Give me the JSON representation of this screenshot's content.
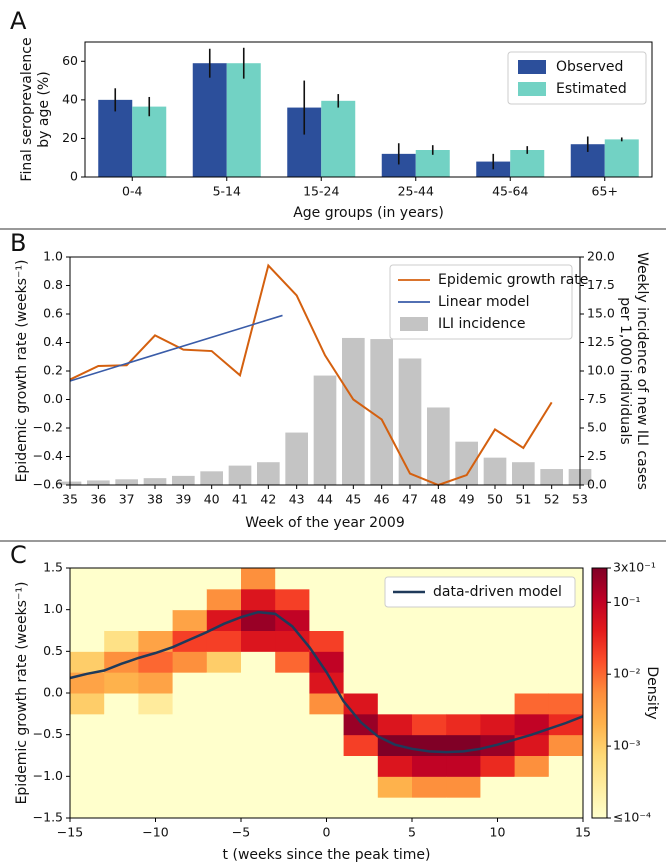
{
  "chart_data": [
    {
      "type": "bar",
      "panel_label": "A",
      "ylabel": [
        "Final seroprevalence",
        "by age (%)"
      ],
      "xlabel": "Age groups (in years)",
      "categories": [
        "0-4",
        "5-14",
        "15-24",
        "25-44",
        "45-64",
        "65+"
      ],
      "series": [
        {
          "name": "Observed",
          "color": "#2c4f9b",
          "values": [
            40,
            59,
            36,
            12,
            8,
            17
          ],
          "errors": [
            6,
            7.5,
            14,
            5.5,
            4,
            4
          ]
        },
        {
          "name": "Estimated",
          "color": "#72d2c4",
          "values": [
            36.5,
            59,
            39.5,
            14,
            14,
            19.5
          ],
          "errors": [
            5,
            8,
            3.5,
            2.5,
            2,
            1
          ]
        }
      ],
      "ylim": [
        0,
        70
      ],
      "yticks": [
        0,
        20,
        40,
        60
      ],
      "legend": "upper right"
    },
    {
      "type": "line",
      "panel_label": "B",
      "ylabel": "Epidemic growth rate (weeks⁻¹)",
      "y2label": [
        "Weekly incidence of new ILI cases",
        "per 1,000 individuals"
      ],
      "xlabel": "Week of the year 2009",
      "series": [
        {
          "name": "Epidemic growth rate",
          "color": "#d4600f",
          "x": [
            35,
            36,
            37,
            38,
            39,
            40,
            41,
            42,
            43,
            44,
            45,
            46,
            47,
            48,
            49,
            50,
            51,
            52
          ],
          "values": [
            0.14,
            0.235,
            0.24,
            0.45,
            0.35,
            0.34,
            0.17,
            0.94,
            0.73,
            0.31,
            0,
            -0.14,
            -0.52,
            -0.6,
            -0.53,
            -0.21,
            -0.34,
            -0.02
          ]
        },
        {
          "name": "Linear model",
          "color": "#3a5ca8",
          "x": [
            35,
            42.5
          ],
          "values": [
            0.13,
            0.59
          ]
        },
        {
          "name": "ILI incidence",
          "color": "#c4c4c4",
          "type": "bar",
          "axis": "y2",
          "x": [
            35,
            36,
            37,
            38,
            39,
            40,
            41,
            42,
            43,
            44,
            45,
            46,
            47,
            48,
            49,
            50,
            51,
            52,
            53
          ],
          "values": [
            0.3,
            0.4,
            0.5,
            0.6,
            0.8,
            1.2,
            1.7,
            2.0,
            4.6,
            9.6,
            12.9,
            12.8,
            11.1,
            6.8,
            3.8,
            2.4,
            2.0,
            1.4,
            1.4
          ]
        }
      ],
      "xlim": [
        35,
        53
      ],
      "xticks": [
        35,
        36,
        37,
        38,
        39,
        40,
        41,
        42,
        43,
        44,
        45,
        46,
        47,
        48,
        49,
        50,
        51,
        52,
        53
      ],
      "ylim": [
        -0.6,
        1.0
      ],
      "yticks": [
        {
          "value": -0.6,
          "label": "−0.6"
        },
        {
          "value": -0.4,
          "label": "−0.4"
        },
        {
          "value": -0.2,
          "label": "−0.2"
        },
        {
          "value": 0,
          "label": "0.0"
        },
        0.2,
        0.4,
        0.6,
        0.8,
        {
          "value": 1,
          "label": "1.0"
        }
      ],
      "y2lim": [
        0,
        20
      ],
      "y2ticks": [
        {
          "value": 0,
          "label": "0.0"
        },
        2.5,
        {
          "value": 5,
          "label": "5.0"
        },
        7.5,
        {
          "value": 10,
          "label": "10.0"
        },
        12.5,
        {
          "value": 15,
          "label": "15.0"
        },
        17.5,
        {
          "value": 20,
          "label": "20.0"
        }
      ],
      "legend": "upper right"
    },
    {
      "type": "heatmap",
      "panel_label": "C",
      "ylabel": "Epidemic growth rate (weeks⁻¹)",
      "xlabel": "t (weeks since the peak time)",
      "x_edges": [
        -15,
        -13,
        -11,
        -9,
        -7,
        -5,
        -3,
        -1,
        1,
        3,
        5,
        7,
        9,
        11,
        13,
        15
      ],
      "y_edges": [
        -1.5,
        -1.25,
        -1,
        -0.75,
        -0.5,
        -0.25,
        0,
        0.25,
        0.5,
        0.75,
        1,
        1.25,
        1.5
      ],
      "z": [
        [
          0.0001,
          0.0001,
          0.0001,
          0.0001,
          0.0001,
          0.001,
          0.003,
          0.001,
          0.0001,
          0.0001,
          0.0001,
          0.0001
        ],
        [
          0.0001,
          0.0001,
          0.0001,
          0.0001,
          0.0001,
          0.0001,
          0.002,
          0.005,
          0.0005,
          0.0001,
          0.0001,
          0.0001
        ],
        [
          0.0001,
          0.0001,
          0.0001,
          0.0001,
          0.0001,
          0.0003,
          0.003,
          0.01,
          0.003,
          0.0001,
          0.0001,
          0.0001
        ],
        [
          0.0001,
          0.0001,
          0.0001,
          0.0001,
          0.0001,
          0.0001,
          0.0001,
          0.005,
          0.02,
          0.003,
          0.0001,
          0.0001
        ],
        [
          0.0001,
          0.0001,
          0.0001,
          0.0001,
          0.0001,
          0.0001,
          0.0001,
          0.001,
          0.02,
          0.05,
          0.005,
          0.0001
        ],
        [
          0.0001,
          0.0001,
          0.0001,
          0.0001,
          0.0001,
          0.0001,
          0.0001,
          0.0001,
          0.05,
          0.2,
          0.05,
          0.005
        ],
        [
          0.0001,
          0.0001,
          0.0001,
          0.0001,
          0.0001,
          0.0001,
          0.0001,
          0.01,
          0.05,
          0.1,
          0.02,
          0.0001
        ],
        [
          0.0001,
          0.0001,
          0.0001,
          0.0001,
          0.0001,
          0.005,
          0.05,
          0.1,
          0.02,
          0.0001,
          0.0001,
          0.0001
        ],
        [
          0.0001,
          0.0001,
          0.0001,
          0.02,
          0.2,
          0.05,
          0.0001,
          0.0001,
          0.0001,
          0.0001,
          0.0001,
          0.0001
        ],
        [
          0.0001,
          0.002,
          0.05,
          0.3,
          0.05,
          0.0001,
          0.0001,
          0.0001,
          0.0001,
          0.0001,
          0.0001,
          0.0001
        ],
        [
          0.0001,
          0.005,
          0.1,
          0.3,
          0.02,
          0.0001,
          0.0001,
          0.0001,
          0.0001,
          0.0001,
          0.0001,
          0.0001
        ],
        [
          0.0001,
          0.005,
          0.1,
          0.3,
          0.03,
          0.0001,
          0.0001,
          0.0001,
          0.0001,
          0.0001,
          0.0001,
          0.0001
        ],
        [
          0.0001,
          0.0001,
          0.03,
          0.2,
          0.05,
          0.0001,
          0.0001,
          0.0001,
          0.0001,
          0.0001,
          0.0001,
          0.0001
        ],
        [
          0.0001,
          0.0001,
          0.005,
          0.05,
          0.1,
          0.01,
          0.0001,
          0.0001,
          0.0001,
          0.0001,
          0.0001,
          0.0001
        ],
        [
          0.0001,
          0.0001,
          0.0001,
          0.005,
          0.03,
          0.01,
          0.0001,
          0.0001,
          0.0001,
          0.0001,
          0.0001,
          0.0001
        ]
      ],
      "series": [
        {
          "name": "data-driven model",
          "color": "#1f3a5a",
          "x": [
            -15,
            -14,
            -13,
            -12,
            -11,
            -10,
            -9,
            -8,
            -7,
            -6,
            -5,
            -4,
            -3,
            -2,
            -1,
            0,
            1,
            2,
            3,
            4,
            5,
            6,
            7,
            8,
            9,
            10,
            11,
            12,
            13,
            14,
            15
          ],
          "values": [
            0.18,
            0.23,
            0.27,
            0.35,
            0.42,
            0.48,
            0.55,
            0.64,
            0.73,
            0.83,
            0.91,
            0.97,
            0.95,
            0.8,
            0.55,
            0.25,
            -0.1,
            -0.35,
            -0.52,
            -0.62,
            -0.67,
            -0.7,
            -0.71,
            -0.7,
            -0.67,
            -0.62,
            -0.56,
            -0.5,
            -0.43,
            -0.36,
            -0.28
          ]
        }
      ],
      "xlim": [
        -15,
        15
      ],
      "xticks": [
        {
          "value": -15,
          "label": "−15"
        },
        {
          "value": -10,
          "label": "−10"
        },
        {
          "value": -5,
          "label": "−5"
        },
        0,
        5,
        10,
        15
      ],
      "ylim": [
        -1.5,
        1.5
      ],
      "yticks": [
        {
          "value": -1.5,
          "label": "−1.5"
        },
        {
          "value": -1,
          "label": "−1.0"
        },
        {
          "value": -0.5,
          "label": "−0.5"
        },
        {
          "value": 0,
          "label": "0.0"
        },
        0.5,
        {
          "value": 1,
          "label": "1.0"
        },
        1.5
      ],
      "colorbar": {
        "label": "Density",
        "scale": "log",
        "lim": [
          0.0001,
          0.3
        ],
        "ticks": [
          {
            "value": 0.3,
            "label": "3x10⁻¹"
          },
          {
            "value": 0.1,
            "label": "10⁻¹"
          },
          {
            "value": 0.01,
            "label": "10⁻²"
          },
          {
            "value": 0.001,
            "label": "10⁻³"
          },
          {
            "value": 0.0001,
            "label": "≤10⁻⁴"
          }
        ],
        "colormap": [
          "#ffffcc",
          "#ffeda0",
          "#fed976",
          "#feb24c",
          "#fd8d3c",
          "#fc4e2a",
          "#e31a1c",
          "#bd0026",
          "#800026"
        ]
      },
      "legend": "upper right"
    }
  ]
}
